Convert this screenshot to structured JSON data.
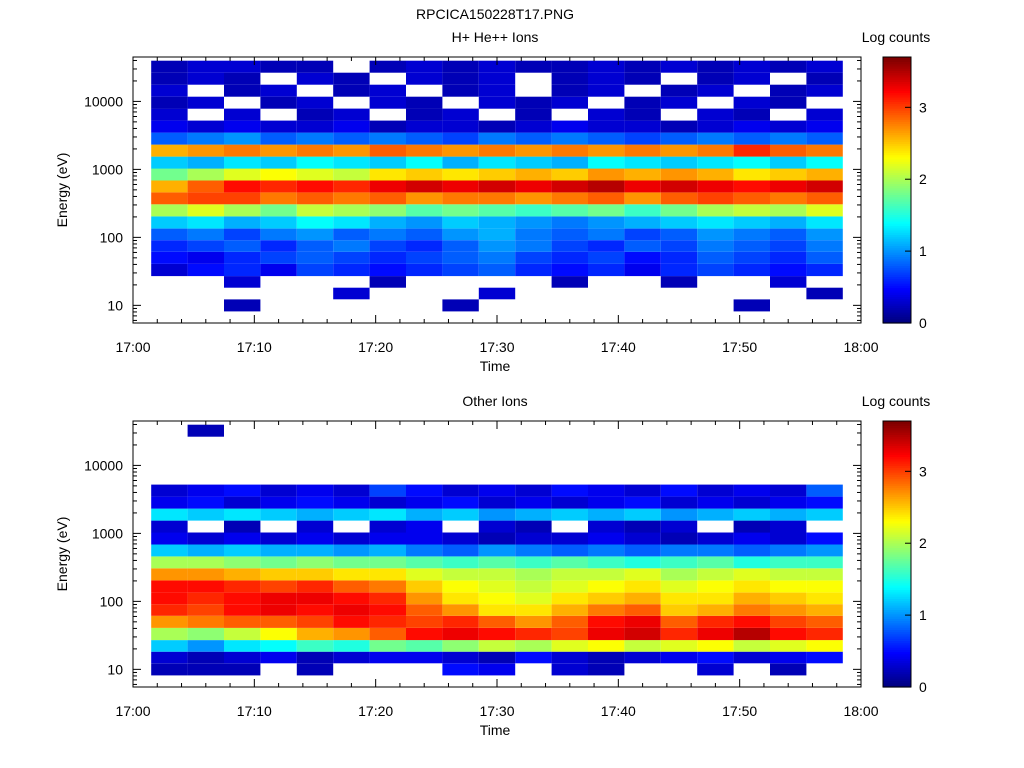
{
  "figure_title": "RPCICA150228T17.PNG",
  "colors": {
    "colormap": [
      "#00007f",
      "#0000ff",
      "#0080ff",
      "#00ffff",
      "#80ff80",
      "#ffff00",
      "#ff8000",
      "#ff0000",
      "#7f0000"
    ]
  },
  "chart_data": [
    {
      "type": "heatmap",
      "title": "H+ He++ Ions",
      "xlabel": "Time",
      "ylabel": "Energy (eV)",
      "colorbar_label": "Log counts",
      "x_ticks": [
        "17:00",
        "17:10",
        "17:20",
        "17:30",
        "17:40",
        "17:50",
        "18:00"
      ],
      "y_ticks": [
        "10",
        "100",
        "1000",
        "10000"
      ],
      "colorbar_ticks": [
        "0",
        "1",
        "2",
        "3"
      ],
      "xlim": [
        "17:00",
        "18:00"
      ],
      "ylim_eV": [
        5.5,
        45000
      ],
      "ylog": true,
      "clim": [
        0,
        3.7
      ],
      "time_columns": [
        "17:03",
        "17:06",
        "17:09",
        "17:12",
        "17:15",
        "17:18",
        "17:21",
        "17:24",
        "17:27",
        "17:30",
        "17:33",
        "17:36",
        "17:39",
        "17:42",
        "17:45",
        "17:48",
        "17:51",
        "17:54",
        "17:57"
      ],
      "energy_bins_eV": [
        10,
        15,
        22,
        33,
        50,
        75,
        110,
        165,
        250,
        375,
        560,
        840,
        1260,
        1890,
        2840,
        4260,
        6390,
        9590,
        14380,
        21570,
        32360
      ],
      "log_counts": [
        [
          null,
          null,
          0.2,
          null,
          null,
          null,
          null,
          null,
          0.2,
          null,
          null,
          null,
          null,
          null,
          null,
          null,
          0.2,
          null,
          null
        ],
        [
          null,
          null,
          null,
          null,
          null,
          0.3,
          null,
          null,
          null,
          0.3,
          null,
          null,
          null,
          null,
          null,
          null,
          null,
          null,
          0.2
        ],
        [
          null,
          null,
          0.3,
          null,
          null,
          null,
          0.2,
          null,
          null,
          null,
          null,
          0.2,
          null,
          null,
          0.2,
          null,
          null,
          0.3,
          null
        ],
        [
          0.3,
          0.5,
          0.6,
          0.4,
          0.7,
          0.6,
          0.5,
          0.6,
          0.7,
          0.8,
          0.6,
          0.5,
          0.6,
          0.4,
          0.6,
          0.7,
          0.6,
          0.5,
          0.6
        ],
        [
          0.5,
          0.4,
          0.6,
          0.7,
          0.8,
          0.7,
          0.6,
          0.7,
          0.8,
          0.9,
          0.7,
          0.6,
          0.7,
          0.5,
          0.6,
          0.8,
          0.7,
          0.6,
          0.8
        ],
        [
          0.6,
          0.7,
          0.8,
          0.6,
          0.8,
          0.9,
          0.7,
          0.6,
          0.8,
          1.0,
          0.9,
          0.7,
          0.6,
          0.8,
          0.7,
          0.9,
          0.8,
          0.7,
          0.9
        ],
        [
          0.8,
          0.9,
          0.7,
          0.9,
          1.0,
          0.8,
          0.9,
          0.8,
          1.0,
          1.1,
          0.9,
          0.8,
          0.9,
          0.7,
          0.8,
          1.0,
          0.9,
          0.8,
          1.0
        ],
        [
          1.2,
          1.3,
          1.1,
          1.2,
          1.4,
          1.3,
          1.1,
          1.0,
          1.2,
          1.1,
          1.0,
          0.9,
          1.0,
          1.1,
          1.2,
          1.3,
          1.2,
          1.1,
          1.3
        ],
        [
          2.0,
          2.2,
          2.0,
          1.8,
          2.1,
          2.0,
          1.9,
          1.7,
          1.8,
          1.7,
          1.6,
          1.7,
          1.8,
          1.6,
          1.8,
          2.0,
          2.1,
          2.0,
          2.2
        ],
        [
          2.9,
          3.0,
          3.0,
          2.8,
          2.9,
          2.8,
          2.9,
          2.7,
          2.8,
          2.8,
          2.7,
          2.8,
          2.9,
          2.7,
          2.9,
          3.0,
          2.9,
          2.8,
          2.9
        ],
        [
          2.6,
          2.9,
          3.2,
          3.1,
          3.2,
          3.1,
          3.3,
          3.4,
          3.3,
          3.4,
          3.3,
          3.4,
          3.5,
          3.3,
          3.4,
          3.3,
          3.2,
          3.3,
          3.4
        ],
        [
          1.8,
          2.0,
          2.2,
          2.3,
          2.2,
          2.1,
          2.4,
          2.5,
          2.4,
          2.5,
          2.6,
          2.5,
          2.7,
          2.6,
          2.7,
          2.6,
          2.4,
          2.5,
          2.6
        ],
        [
          1.2,
          1.1,
          1.3,
          1.2,
          1.4,
          1.3,
          1.2,
          1.4,
          1.1,
          1.3,
          1.2,
          1.1,
          1.4,
          1.3,
          1.2,
          1.3,
          1.4,
          1.2,
          1.4
        ],
        [
          2.6,
          2.7,
          2.8,
          2.7,
          2.8,
          2.7,
          2.9,
          2.8,
          2.7,
          2.8,
          2.7,
          2.8,
          2.7,
          2.8,
          2.7,
          2.8,
          3.1,
          2.9,
          2.8
        ],
        [
          0.8,
          0.9,
          1.0,
          0.8,
          0.9,
          0.8,
          0.9,
          0.8,
          0.7,
          0.9,
          0.8,
          0.9,
          0.8,
          0.7,
          0.8,
          0.9,
          0.8,
          0.9,
          0.8
        ],
        [
          0.4,
          0.3,
          0.4,
          0.3,
          0.3,
          0.4,
          0.2,
          0.3,
          0.3,
          0.2,
          0.3,
          0.4,
          0.3,
          0.3,
          0.2,
          0.3,
          0.4,
          0.3,
          0.4
        ],
        [
          0.3,
          null,
          0.3,
          null,
          0.2,
          0.3,
          null,
          0.2,
          0.3,
          null,
          0.2,
          null,
          0.3,
          0.2,
          null,
          0.3,
          0.2,
          null,
          0.3
        ],
        [
          0.2,
          0.3,
          null,
          0.2,
          0.3,
          null,
          0.3,
          0.2,
          null,
          0.3,
          0.2,
          0.3,
          null,
          0.2,
          0.3,
          null,
          0.3,
          0.2,
          null
        ],
        [
          0.3,
          null,
          0.2,
          0.3,
          null,
          0.2,
          0.3,
          null,
          0.2,
          0.3,
          null,
          0.2,
          0.3,
          null,
          0.2,
          0.3,
          null,
          0.2,
          0.3
        ],
        [
          0.2,
          0.3,
          0.2,
          null,
          0.3,
          0.2,
          null,
          0.3,
          0.2,
          0.3,
          null,
          0.2,
          0.3,
          0.2,
          null,
          0.2,
          0.3,
          null,
          0.2
        ],
        [
          0.2,
          0.3,
          0.3,
          0.2,
          0.2,
          null,
          0.2,
          0.3,
          0.2,
          0.3,
          0.2,
          0.2,
          0.3,
          0.2,
          0.3,
          0.2,
          0.3,
          0.2,
          0.3
        ]
      ]
    },
    {
      "type": "heatmap",
      "title": "Other Ions",
      "xlabel": "Time",
      "ylabel": "Energy (eV)",
      "colorbar_label": "Log counts",
      "x_ticks": [
        "17:00",
        "17:10",
        "17:20",
        "17:30",
        "17:40",
        "17:50",
        "18:00"
      ],
      "y_ticks": [
        "10",
        "100",
        "1000",
        "10000"
      ],
      "colorbar_ticks": [
        "0",
        "1",
        "2",
        "3"
      ],
      "xlim": [
        "17:00",
        "18:00"
      ],
      "ylim_eV": [
        5.5,
        45000
      ],
      "ylog": true,
      "clim": [
        0,
        3.7
      ],
      "time_columns": [
        "17:03",
        "17:06",
        "17:09",
        "17:12",
        "17:15",
        "17:18",
        "17:21",
        "17:24",
        "17:27",
        "17:30",
        "17:33",
        "17:36",
        "17:39",
        "17:42",
        "17:45",
        "17:48",
        "17:51",
        "17:54",
        "17:57"
      ],
      "energy_bins_eV": [
        10,
        15,
        22,
        33,
        50,
        75,
        110,
        165,
        250,
        375,
        560,
        840,
        1260,
        1890,
        2840,
        4260,
        6390,
        9590,
        14380,
        21570,
        32360
      ],
      "log_counts": [
        [
          0.2,
          0.2,
          0.2,
          null,
          0.2,
          null,
          null,
          null,
          0.5,
          0.4,
          null,
          0.3,
          0.2,
          null,
          null,
          0.3,
          null,
          0.2,
          null
        ],
        [
          0.3,
          0.2,
          0.3,
          0.4,
          0.2,
          0.3,
          0.4,
          0.4,
          0.3,
          0.2,
          0.5,
          0.3,
          0.2,
          0.3,
          0.4,
          0.5,
          0.3,
          0.4,
          0.5
        ],
        [
          1.2,
          1.0,
          1.3,
          1.4,
          1.6,
          1.5,
          1.8,
          1.7,
          1.9,
          2.1,
          2.0,
          2.2,
          2.3,
          2.1,
          2.2,
          2.3,
          2.1,
          2.2,
          2.3
        ],
        [
          2.0,
          1.9,
          2.1,
          2.3,
          2.6,
          2.7,
          2.9,
          3.2,
          3.3,
          3.2,
          3.1,
          3.0,
          3.3,
          3.4,
          3.1,
          3.3,
          3.5,
          3.2,
          3.1
        ],
        [
          2.7,
          2.8,
          2.9,
          2.9,
          3.0,
          3.2,
          3.1,
          3.0,
          3.1,
          2.9,
          2.7,
          2.9,
          3.2,
          3.3,
          2.9,
          3.1,
          3.2,
          3.0,
          2.9
        ],
        [
          3.1,
          3.0,
          3.2,
          3.3,
          3.2,
          3.3,
          3.2,
          2.9,
          2.7,
          2.4,
          2.4,
          2.6,
          2.8,
          2.9,
          2.5,
          2.6,
          2.8,
          2.7,
          2.6
        ],
        [
          3.2,
          3.1,
          3.2,
          3.3,
          3.3,
          3.2,
          3.1,
          2.7,
          2.4,
          2.3,
          2.2,
          2.4,
          2.5,
          2.6,
          2.4,
          2.4,
          2.6,
          2.5,
          2.4
        ],
        [
          3.2,
          3.2,
          3.1,
          3.0,
          3.1,
          2.9,
          2.8,
          2.5,
          2.3,
          2.2,
          2.1,
          2.2,
          2.3,
          2.4,
          2.2,
          2.3,
          2.4,
          2.3,
          2.3
        ],
        [
          2.7,
          2.7,
          2.6,
          2.5,
          2.5,
          2.4,
          2.4,
          2.2,
          2.1,
          2.1,
          2.0,
          2.1,
          2.1,
          2.2,
          2.0,
          2.1,
          2.2,
          2.1,
          2.1
        ],
        [
          2.0,
          2.0,
          1.9,
          1.8,
          1.9,
          1.8,
          1.8,
          1.7,
          1.6,
          1.7,
          1.6,
          1.7,
          1.6,
          1.5,
          1.6,
          1.7,
          1.5,
          1.6,
          1.6
        ],
        [
          1.2,
          1.1,
          1.2,
          1.1,
          1.1,
          1.0,
          1.1,
          0.9,
          0.8,
          1.0,
          0.9,
          0.8,
          0.9,
          0.8,
          0.9,
          0.9,
          0.8,
          0.9,
          1.0
        ],
        [
          0.4,
          0.3,
          0.4,
          0.3,
          0.4,
          0.3,
          0.4,
          0.4,
          0.3,
          0.2,
          0.3,
          0.3,
          0.4,
          0.3,
          0.2,
          0.3,
          0.4,
          0.3,
          0.5
        ],
        [
          0.3,
          null,
          0.2,
          null,
          0.3,
          null,
          0.3,
          0.4,
          null,
          0.3,
          0.2,
          null,
          0.3,
          0.2,
          0.3,
          null,
          0.2,
          0.3,
          null
        ],
        [
          1.3,
          1.2,
          1.3,
          1.2,
          1.1,
          1.2,
          1.3,
          1.1,
          1.2,
          1.0,
          1.1,
          1.2,
          1.1,
          1.2,
          1.0,
          1.1,
          1.2,
          1.1,
          1.2
        ],
        [
          0.4,
          0.5,
          0.3,
          0.4,
          0.5,
          0.4,
          0.3,
          0.4,
          0.5,
          0.3,
          0.4,
          0.3,
          0.4,
          0.5,
          0.3,
          0.4,
          0.3,
          0.4,
          0.5
        ],
        [
          0.3,
          0.4,
          0.5,
          0.3,
          0.4,
          0.3,
          0.7,
          0.5,
          0.3,
          0.4,
          0.3,
          0.5,
          0.4,
          0.3,
          0.5,
          0.3,
          0.4,
          0.3,
          0.8
        ],
        [
          null,
          null,
          null,
          null,
          null,
          null,
          null,
          null,
          null,
          null,
          null,
          null,
          null,
          null,
          null,
          null,
          null,
          null,
          null
        ],
        [
          null,
          null,
          null,
          null,
          null,
          null,
          null,
          null,
          null,
          null,
          null,
          null,
          null,
          null,
          null,
          null,
          null,
          null,
          null
        ],
        [
          null,
          null,
          null,
          null,
          null,
          null,
          null,
          null,
          null,
          null,
          null,
          null,
          null,
          null,
          null,
          null,
          null,
          null,
          null
        ],
        [
          null,
          null,
          null,
          null,
          null,
          null,
          null,
          null,
          null,
          null,
          null,
          null,
          null,
          null,
          null,
          null,
          null,
          null,
          null
        ],
        [
          null,
          0.2,
          null,
          null,
          null,
          null,
          null,
          null,
          null,
          null,
          null,
          null,
          null,
          null,
          null,
          null,
          null,
          null,
          null
        ]
      ]
    }
  ]
}
